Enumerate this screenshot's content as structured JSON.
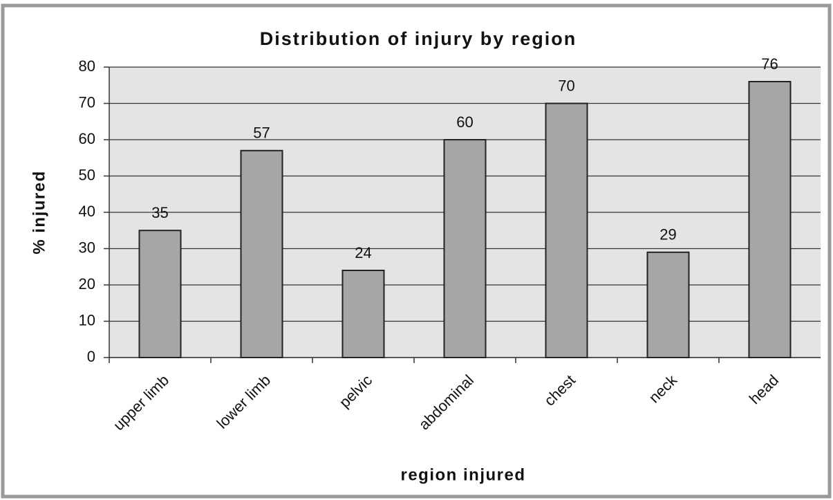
{
  "chart_data": {
    "type": "bar",
    "title": "Distribution of injury by region",
    "x_label": "region injured",
    "y_label": "% injured",
    "categories": [
      "upper limb",
      "lower limb",
      "pelvic",
      "abdominal",
      "chest",
      "neck",
      "head"
    ],
    "values": [
      35,
      57,
      24,
      60,
      70,
      29,
      76
    ],
    "color": "#a6a6a6",
    "ylim": [
      0,
      80
    ],
    "yticks": [
      0,
      10,
      20,
      30,
      40,
      50,
      60,
      70,
      80
    ],
    "grid": true
  }
}
